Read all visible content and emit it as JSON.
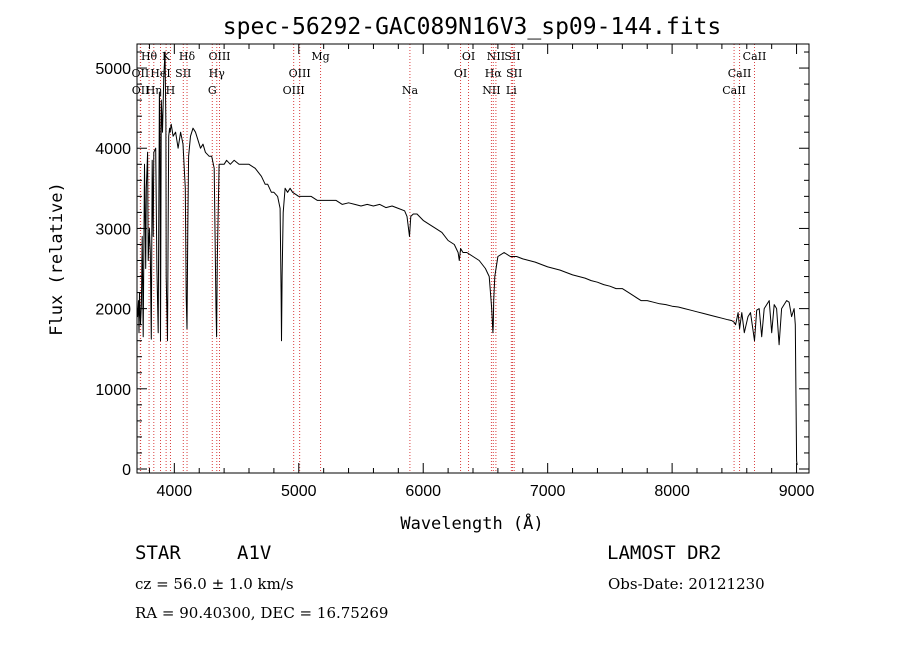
{
  "chart_data": {
    "type": "line",
    "title": "spec-56292-GAC089N16V3_sp09-144.fits",
    "xlabel": "Wavelength (Å)",
    "ylabel": "Flux (relative)",
    "xlim": [
      3700,
      9100
    ],
    "ylim": [
      -50,
      5300
    ],
    "xticks": [
      "4000",
      "5000",
      "6000",
      "7000",
      "8000",
      "9000"
    ],
    "xtick_values": [
      4000,
      5000,
      6000,
      7000,
      8000,
      9000
    ],
    "yticks": [
      "0",
      "1000",
      "2000",
      "3000",
      "4000",
      "5000"
    ],
    "ytick_values": [
      0,
      1000,
      2000,
      3000,
      4000,
      5000
    ],
    "grid": false,
    "series": [
      {
        "x": [
          3700,
          3705,
          3712,
          3716,
          3720,
          3728,
          3735,
          3742,
          3750,
          3760,
          3770,
          3775,
          3785,
          3790,
          3800,
          3807,
          3815,
          3822,
          3830,
          3835,
          3850,
          3860,
          3870,
          3880,
          3885,
          3889,
          3895,
          3905,
          3915,
          3925,
          3932,
          3935,
          3945,
          3955,
          3962,
          3966,
          3975,
          3990,
          4010,
          4030,
          4050,
          4070,
          4088,
          4095,
          4102,
          4108,
          4115,
          4130,
          4150,
          4170,
          4190,
          4210,
          4230,
          4250,
          4280,
          4300,
          4320,
          4335,
          4340,
          4345,
          4360,
          4400,
          4420,
          4450,
          4480,
          4520,
          4550,
          4600,
          4650,
          4700,
          4730,
          4750,
          4780,
          4800,
          4830,
          4850,
          4858,
          4861,
          4866,
          4875,
          4890,
          4910,
          4930,
          4950,
          5000,
          5050,
          5100,
          5150,
          5200,
          5250,
          5300,
          5350,
          5400,
          5450,
          5500,
          5550,
          5600,
          5650,
          5700,
          5750,
          5800,
          5850,
          5870,
          5890,
          5900,
          5920,
          5950,
          6000,
          6050,
          6100,
          6150,
          6200,
          6250,
          6280,
          6290,
          6300,
          6320,
          6350,
          6400,
          6450,
          6500,
          6530,
          6550,
          6560,
          6563,
          6566,
          6575,
          6600,
          6650,
          6700,
          6750,
          6800,
          6850,
          6900,
          6950,
          7000,
          7050,
          7100,
          7150,
          7200,
          7250,
          7300,
          7350,
          7400,
          7450,
          7500,
          7550,
          7600,
          7650,
          7700,
          7750,
          7800,
          7850,
          7900,
          7950,
          8000,
          8050,
          8100,
          8150,
          8200,
          8250,
          8300,
          8350,
          8400,
          8450,
          8480,
          8498,
          8510,
          8530,
          8542,
          8560,
          8580,
          8610,
          8630,
          8662,
          8680,
          8700,
          8720,
          8740,
          8760,
          8780,
          8800,
          8820,
          8840,
          8860,
          8880,
          8900,
          8920,
          8940,
          8960,
          8980,
          8990,
          8995,
          9000,
          9005
        ],
        "values": [
          2000,
          1900,
          2100,
          1700,
          2200,
          1800,
          2050,
          2900,
          1650,
          3800,
          2500,
          3500,
          3950,
          2600,
          3000,
          2700,
          1620,
          3850,
          2900,
          3950,
          4000,
          2500,
          1700,
          4700,
          4100,
          1600,
          4600,
          4200,
          4900,
          5200,
          4300,
          2400,
          1600,
          4150,
          4250,
          4200,
          4300,
          4150,
          4200,
          4000,
          4200,
          4050,
          3500,
          2150,
          1750,
          3000,
          3900,
          4150,
          4250,
          4200,
          4100,
          4000,
          4050,
          3950,
          3900,
          3900,
          3750,
          2000,
          1650,
          2600,
          3800,
          3800,
          3850,
          3800,
          3850,
          3800,
          3800,
          3800,
          3750,
          3650,
          3550,
          3550,
          3450,
          3450,
          3400,
          3250,
          2200,
          1600,
          2400,
          3200,
          3500,
          3450,
          3500,
          3450,
          3400,
          3400,
          3400,
          3350,
          3350,
          3350,
          3350,
          3300,
          3320,
          3300,
          3280,
          3300,
          3280,
          3300,
          3260,
          3280,
          3250,
          3220,
          3150,
          2900,
          3150,
          3180,
          3180,
          3100,
          3050,
          3000,
          2950,
          2850,
          2800,
          2700,
          2600,
          2750,
          2700,
          2700,
          2650,
          2600,
          2500,
          2400,
          2000,
          1700,
          1800,
          2100,
          2400,
          2650,
          2700,
          2650,
          2650,
          2620,
          2600,
          2580,
          2550,
          2520,
          2500,
          2480,
          2450,
          2420,
          2400,
          2380,
          2350,
          2330,
          2300,
          2280,
          2250,
          2250,
          2200,
          2150,
          2100,
          2100,
          2080,
          2060,
          2050,
          2030,
          2020,
          2000,
          1980,
          1960,
          1940,
          1920,
          1900,
          1880,
          1860,
          1850,
          1830,
          1800,
          1950,
          1750,
          1950,
          1700,
          1900,
          1950,
          1600,
          1980,
          2000,
          1650,
          2000,
          2050,
          2100,
          1700,
          2050,
          2000,
          1550,
          2000,
          2050,
          2100,
          2080,
          1900,
          2000,
          1800,
          1000,
          100,
          50
        ]
      }
    ],
    "spectral_lines": [
      {
        "label": "Hθ",
        "x": 3797,
        "row": 0
      },
      {
        "label": "K",
        "x": 3934,
        "row": 0
      },
      {
        "label": "Hδ",
        "x": 4102,
        "row": 0
      },
      {
        "label": "OIII",
        "x": 4363,
        "row": 0
      },
      {
        "label": "Mg",
        "x": 5175,
        "row": 0
      },
      {
        "label": "OI",
        "x": 6364,
        "row": 0
      },
      {
        "label": "NII",
        "x": 6584,
        "row": 0
      },
      {
        "label": "SII",
        "x": 6717,
        "row": 0
      },
      {
        "label": "CaII",
        "x": 8662,
        "row": 0
      },
      {
        "label": "OII",
        "x": 3727,
        "row": 1
      },
      {
        "label": "HeI",
        "x": 3889,
        "row": 1
      },
      {
        "label": "SII",
        "x": 4072,
        "row": 1
      },
      {
        "label": "Hγ",
        "x": 4341,
        "row": 1
      },
      {
        "label": "OIII",
        "x": 5007,
        "row": 1
      },
      {
        "label": "OI",
        "x": 6300,
        "row": 1
      },
      {
        "label": "Hα",
        "x": 6563,
        "row": 1
      },
      {
        "label": "SII",
        "x": 6731,
        "row": 1
      },
      {
        "label": "CaII",
        "x": 8542,
        "row": 1
      },
      {
        "label": "OII",
        "x": 3729,
        "row": 2
      },
      {
        "label": "Hη",
        "x": 3835,
        "row": 2
      },
      {
        "label": "H",
        "x": 3969,
        "row": 2
      },
      {
        "label": "G",
        "x": 4305,
        "row": 2
      },
      {
        "label": "OIII",
        "x": 4959,
        "row": 2
      },
      {
        "label": "Na",
        "x": 5893,
        "row": 2
      },
      {
        "label": "NII",
        "x": 6548,
        "row": 2
      },
      {
        "label": "Li",
        "x": 6708,
        "row": 2
      },
      {
        "label": "CaII",
        "x": 8498,
        "row": 2
      }
    ]
  },
  "info": {
    "object_type": "STAR",
    "subclass": "A1V",
    "survey": "LAMOST DR2",
    "cz": "cz = 56.0 ± 1.0 km/s",
    "obs_date": "Obs-Date: 20121230",
    "coords": "RA =  90.40300, DEC =  16.75269"
  },
  "colors": {
    "line": "#000000",
    "marker": "#d94040",
    "axis": "#000000"
  }
}
